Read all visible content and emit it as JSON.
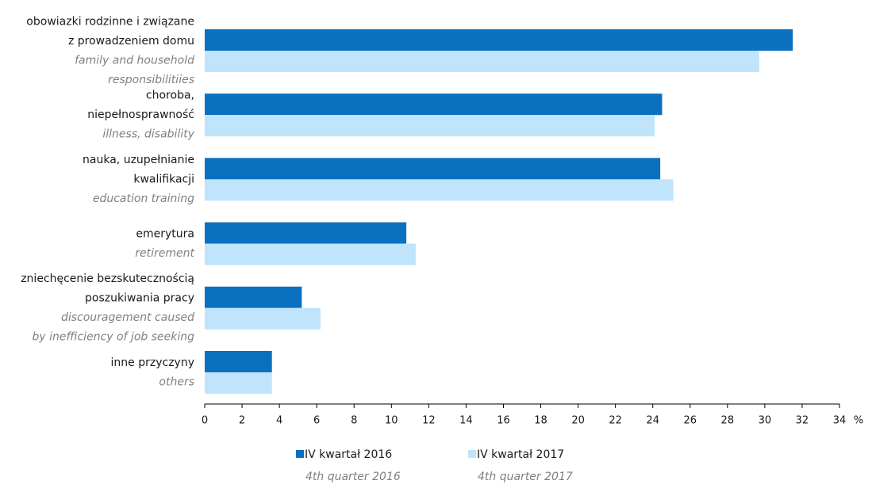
{
  "chart_data": {
    "type": "bar",
    "orientation": "horizontal",
    "categories": [
      [
        "obowiazki rodzinne i związane",
        "z prowadzeniem domu"
      ],
      [
        "choroba,",
        "niepełnosprawność"
      ],
      [
        "nauka, uzupełnianie",
        "kwalifikacji"
      ],
      [
        "emerytura"
      ],
      [
        "zniechęcenie bezskutecznością",
        "poszukiwania pracy"
      ],
      [
        "inne przyczyny"
      ]
    ],
    "categories_en": [
      [
        "family and household",
        "responsibilitiies"
      ],
      [
        "illness, disability"
      ],
      [
        "education training"
      ],
      [
        "retirement"
      ],
      [
        "discouragement caused",
        "by inefficiency of job seeking"
      ],
      [
        "others"
      ]
    ],
    "series": [
      {
        "name": "IV kwartał 2016",
        "name_en": "4th quarter 2016",
        "color": "#0a70c0",
        "values": [
          31.5,
          24.5,
          24.4,
          10.8,
          5.2,
          3.6
        ]
      },
      {
        "name": "IV kwartał 2017",
        "name_en": "4th quarter 2017",
        "color": "#bfe4fb",
        "values": [
          29.7,
          24.1,
          25.1,
          11.3,
          6.2,
          3.6
        ]
      }
    ],
    "xlim": [
      0,
      34
    ],
    "xticks": [
      0,
      2,
      4,
      6,
      8,
      10,
      12,
      14,
      16,
      18,
      20,
      22,
      24,
      26,
      28,
      30,
      32,
      34
    ],
    "x_unit": "%",
    "grid": false
  }
}
